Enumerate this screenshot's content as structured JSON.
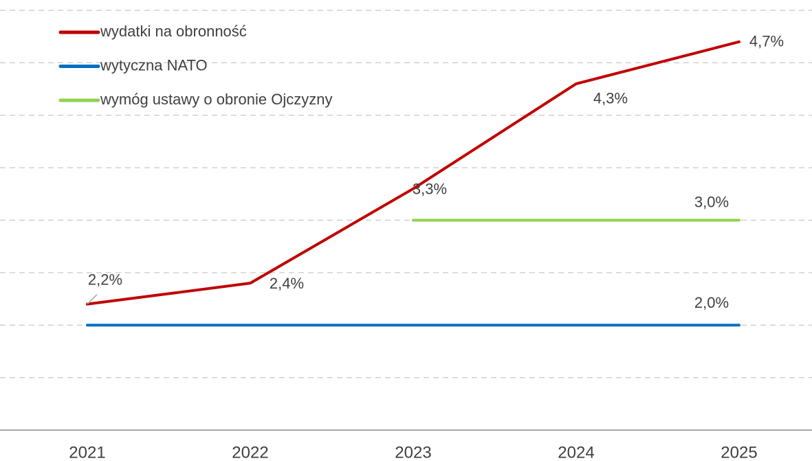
{
  "chart_data": {
    "type": "line",
    "categories": [
      "2021",
      "2022",
      "2023",
      "2024",
      "2025"
    ],
    "series": [
      {
        "name": "wydatki na obronność",
        "color": "#c00000",
        "values": [
          2.2,
          2.4,
          3.3,
          4.3,
          4.7
        ],
        "value_labels": [
          "2,2%",
          "2,4%",
          "3,3%",
          "4,3%",
          "4,7%"
        ]
      },
      {
        "name": "wytyczna NATO",
        "color": "#0070c0",
        "values": [
          2.0,
          2.0,
          2.0,
          2.0,
          2.0
        ],
        "value_labels": [
          null,
          null,
          null,
          null,
          "2,0%"
        ]
      },
      {
        "name": "wymóg ustawy o obronie Ojczyzny",
        "color": "#92d050",
        "values": [
          null,
          null,
          3.0,
          3.0,
          3.0
        ],
        "value_labels": [
          null,
          null,
          null,
          null,
          "3,0%"
        ]
      }
    ],
    "ylim": [
      1,
      5
    ],
    "yticks": [
      1,
      1.5,
      2,
      2.5,
      3,
      3.5,
      4,
      4.5,
      5
    ],
    "grid": true,
    "legend": "top-left"
  }
}
